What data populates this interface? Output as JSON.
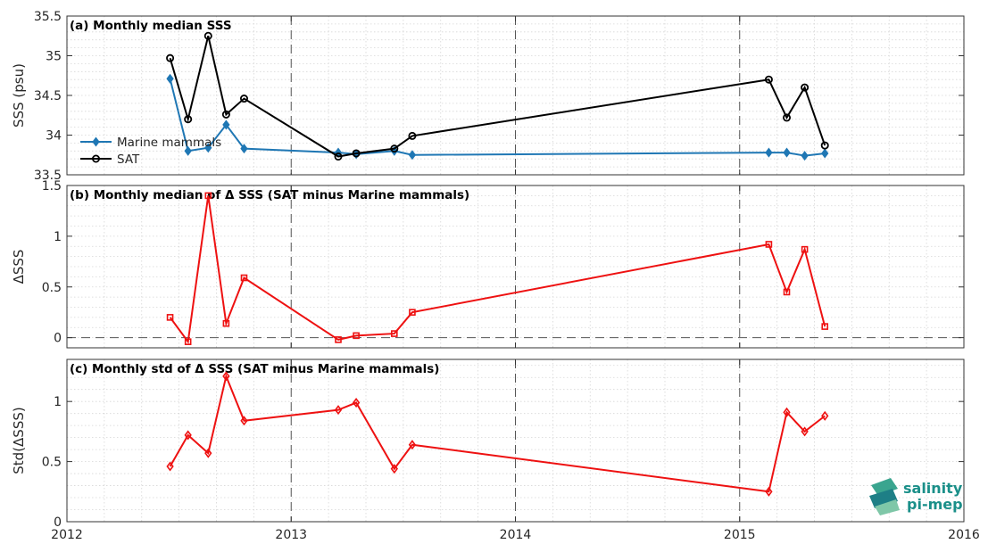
{
  "colors": {
    "marine": "#1f77b4",
    "sat": "#000000",
    "red": "#ee1111",
    "grid": "#d6d6d6",
    "axis": "#333333",
    "logo": "#1a8f89"
  },
  "logo": {
    "line1": "salinity",
    "line2": "pi-mep"
  },
  "chart_data": [
    {
      "type": "line",
      "title": "(a) Monthly median SSS",
      "xlabel": "",
      "ylabel": "SSS (psu)",
      "xlim": [
        2012,
        2016
      ],
      "ylim": [
        33.5,
        35.5
      ],
      "yticks": [
        33.5,
        34,
        34.5,
        35,
        35.5
      ],
      "ytick_labels": [
        "33.5",
        "34",
        "34.5",
        "35",
        "35.5"
      ],
      "grid": true,
      "legend": "left",
      "series": [
        {
          "name": "Marine mammals",
          "marker": "diamond",
          "color": "#1f77b4",
          "x": [
            2012.46,
            2012.54,
            2012.63,
            2012.71,
            2012.79,
            2013.21,
            2013.29,
            2013.46,
            2013.54,
            2015.13,
            2015.21,
            2015.29,
            2015.38
          ],
          "y": [
            34.71,
            33.8,
            33.84,
            34.13,
            33.83,
            33.78,
            33.76,
            33.8,
            33.75,
            33.78,
            33.78,
            33.74,
            33.77
          ]
        },
        {
          "name": "SAT",
          "marker": "circle",
          "color": "#000000",
          "x": [
            2012.46,
            2012.54,
            2012.63,
            2012.71,
            2012.79,
            2013.21,
            2013.29,
            2013.46,
            2013.54,
            2015.13,
            2015.21,
            2015.29,
            2015.38
          ],
          "y": [
            34.97,
            34.2,
            35.25,
            34.26,
            34.46,
            33.73,
            33.77,
            33.83,
            33.99,
            34.7,
            34.22,
            34.6,
            33.87
          ]
        }
      ]
    },
    {
      "type": "line",
      "title": "(b) Monthly median of Δ SSS (SAT minus Marine mammals)",
      "xlabel": "",
      "ylabel": "ΔSSS",
      "xlim": [
        2012,
        2016
      ],
      "ylim": [
        -0.1,
        1.5
      ],
      "yticks": [
        0,
        0.5,
        1,
        1.5
      ],
      "ytick_labels": [
        "0",
        "0.5",
        "1",
        "1.5"
      ],
      "zero_line": true,
      "grid": true,
      "series": [
        {
          "marker": "square",
          "color": "#ee1111",
          "x": [
            2012.46,
            2012.54,
            2012.63,
            2012.71,
            2012.79,
            2013.21,
            2013.29,
            2013.46,
            2013.54,
            2015.13,
            2015.21,
            2015.29,
            2015.38
          ],
          "y": [
            0.2,
            -0.04,
            1.4,
            0.14,
            0.59,
            -0.02,
            0.02,
            0.04,
            0.25,
            0.92,
            0.45,
            0.87,
            0.11
          ]
        }
      ]
    },
    {
      "type": "line",
      "title": "(c) Monthly std of Δ SSS (SAT minus Marine mammals)",
      "xlabel": "",
      "ylabel": "Std(ΔSSS)",
      "xlim": [
        2012,
        2016
      ],
      "ylim": [
        0,
        1.35
      ],
      "yticks": [
        0,
        0.5,
        1
      ],
      "ytick_labels": [
        "0",
        "0.5",
        "1"
      ],
      "xticks": [
        2012,
        2013,
        2014,
        2015,
        2016
      ],
      "xtick_labels": [
        "2012",
        "2013",
        "2014",
        "2015",
        "2016"
      ],
      "grid": true,
      "series": [
        {
          "marker": "diamond",
          "color": "#ee1111",
          "x": [
            2012.46,
            2012.54,
            2012.63,
            2012.71,
            2012.79,
            2013.21,
            2013.29,
            2013.46,
            2013.54,
            2015.13,
            2015.21,
            2015.29,
            2015.38
          ],
          "y": [
            0.46,
            0.72,
            0.57,
            1.21,
            0.84,
            0.93,
            0.99,
            0.44,
            0.64,
            0.25,
            0.91,
            0.75,
            0.88
          ]
        }
      ]
    }
  ]
}
